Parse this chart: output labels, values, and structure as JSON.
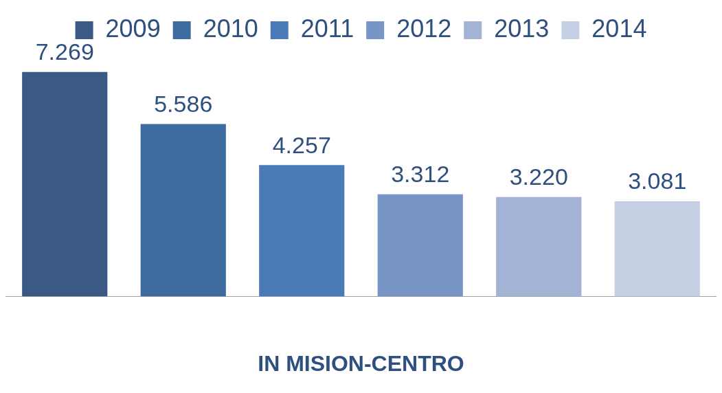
{
  "chart_data": {
    "type": "bar",
    "xlabel": "IN MISION-CENTRO",
    "categories": [
      null,
      null,
      null,
      null,
      null,
      null
    ],
    "stacked": true,
    "legend": "top",
    "series": [
      {
        "name": "2009",
        "color": "#3a5a85",
        "values": [
          7.269,
          null,
          null,
          null,
          null,
          null
        ],
        "value_labels": [
          "7.269",
          null,
          null,
          null,
          null,
          null
        ]
      },
      {
        "name": "2010",
        "color": "#3f6ca0",
        "values": [
          null,
          5.586,
          null,
          null,
          null,
          null
        ],
        "value_labels": [
          null,
          "5.586",
          null,
          null,
          null,
          null
        ]
      },
      {
        "name": "2011",
        "color": "#4a7bb7",
        "values": [
          null,
          null,
          4.257,
          null,
          null,
          null
        ],
        "value_labels": [
          null,
          null,
          "4.257",
          null,
          null,
          null
        ]
      },
      {
        "name": "2012",
        "color": "#7796c6",
        "values": [
          null,
          null,
          null,
          3.312,
          null,
          null
        ],
        "value_labels": [
          null,
          null,
          null,
          "3.312",
          null,
          null
        ]
      },
      {
        "name": "2013",
        "color": "#a2b3d6",
        "values": [
          null,
          null,
          null,
          null,
          3.22,
          null
        ],
        "value_labels": [
          null,
          null,
          null,
          null,
          "3.220",
          null
        ]
      },
      {
        "name": "2014",
        "color": "#c5cfe3",
        "values": [
          null,
          null,
          null,
          null,
          null,
          3.081
        ],
        "value_labels": [
          null,
          null,
          null,
          null,
          null,
          "3.081"
        ]
      }
    ]
  }
}
